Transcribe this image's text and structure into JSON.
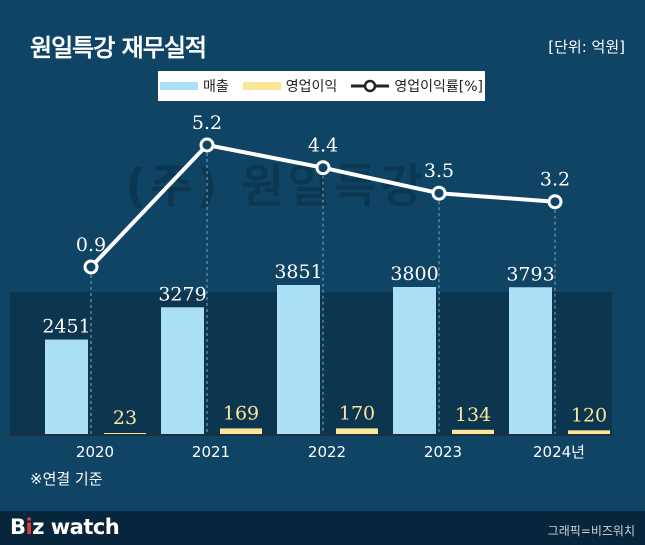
{
  "title": "원일특강 재무실적",
  "unit": "[단위: 억원]",
  "note": "※연결 기준",
  "watermark": "(주) 원일특강",
  "footer": {
    "logo_main": "B",
    "logo_accent": "i",
    "logo_rest": "z watch",
    "credit": "그래픽=비즈워치"
  },
  "legend": [
    {
      "label": "매출",
      "color": "#aadff6",
      "type": "bar"
    },
    {
      "label": "영업이익",
      "color": "#fbe79a",
      "type": "bar"
    },
    {
      "label": "영업이익률[%]",
      "color": "#222222",
      "type": "line"
    }
  ],
  "colors": {
    "background": "#0f4465",
    "plot_band": "#0c3550",
    "sales": "#aadff6",
    "profit": "#fbe79a",
    "margin_line": "#ffffff"
  },
  "chart_data": {
    "type": "bar",
    "categories": [
      "2020",
      "2021",
      "2022",
      "2023",
      "2024년"
    ],
    "series": [
      {
        "name": "매출",
        "type": "bar",
        "values": [
          2451,
          3279,
          3851,
          3800,
          3793
        ],
        "labels": [
          "2451",
          "3279",
          "3851",
          "3800",
          "3793"
        ]
      },
      {
        "name": "영업이익",
        "type": "bar",
        "values": [
          23,
          169,
          170,
          134,
          120
        ],
        "labels": [
          "23",
          "169",
          "170",
          "134",
          "120"
        ]
      },
      {
        "name": "영업이익률[%]",
        "type": "line",
        "values": [
          0.9,
          5.2,
          4.4,
          3.5,
          3.2
        ],
        "labels": [
          "0.9",
          "5.2",
          "4.4",
          "3.5",
          "3.2"
        ]
      }
    ],
    "grid": false,
    "legend_position": "top-center"
  }
}
